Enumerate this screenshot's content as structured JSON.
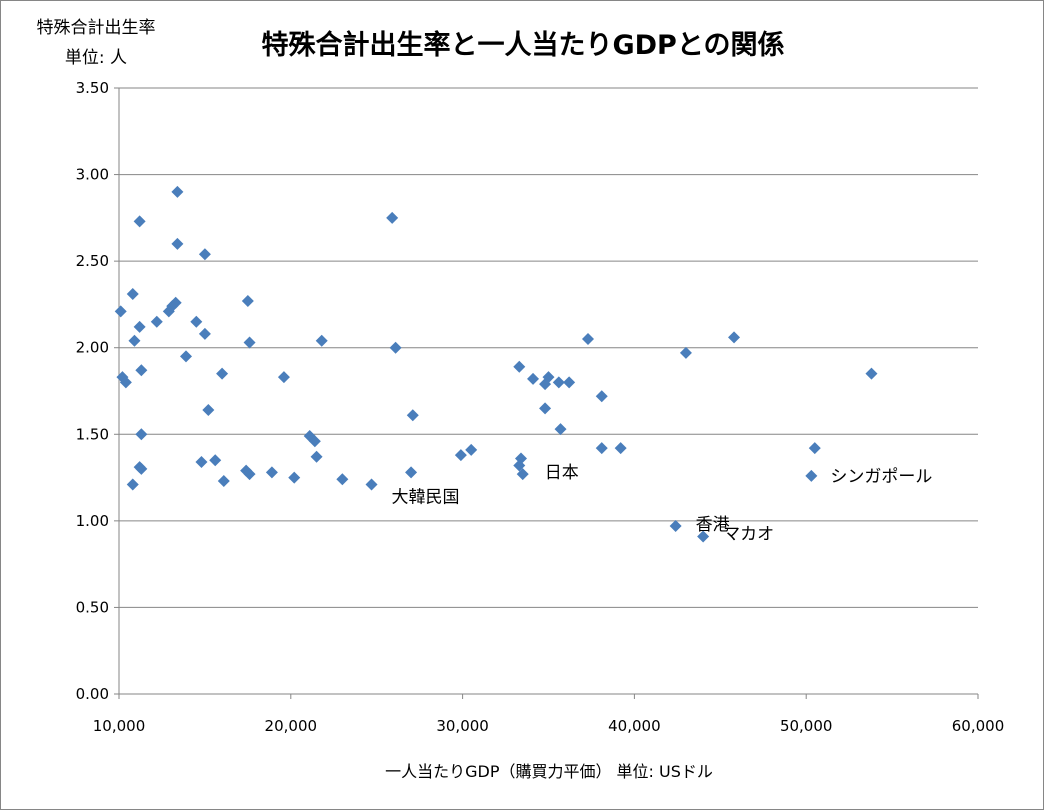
{
  "chart_data": {
    "type": "scatter",
    "title": "特殊合計出生率と一人当たりGDPとの関係",
    "ylabel": [
      "特殊合計出生率",
      "単位: 人"
    ],
    "xlabel": "一人当たりGDP（購買力平価） 単位: USドル",
    "xlim": [
      10000,
      60000
    ],
    "ylim": [
      0,
      3.5
    ],
    "x_ticks": [
      "10,000",
      "20,000",
      "30,000",
      "40,000",
      "50,000",
      "60,000"
    ],
    "y_ticks": [
      "0.00",
      "0.50",
      "1.00",
      "1.50",
      "2.00",
      "2.50",
      "3.00",
      "3.50"
    ],
    "grid": "horizontal",
    "marker_color": "#4a7ebb",
    "points": [
      [
        13400,
        2.9
      ],
      [
        11200,
        2.73
      ],
      [
        25900,
        2.75
      ],
      [
        13400,
        2.6
      ],
      [
        15000,
        2.54
      ],
      [
        10800,
        2.31
      ],
      [
        13300,
        2.26
      ],
      [
        17500,
        2.27
      ],
      [
        10100,
        2.21
      ],
      [
        12900,
        2.21
      ],
      [
        13100,
        2.24
      ],
      [
        12200,
        2.15
      ],
      [
        14500,
        2.15
      ],
      [
        11200,
        2.12
      ],
      [
        15000,
        2.08
      ],
      [
        10900,
        2.04
      ],
      [
        17600,
        2.03
      ],
      [
        21800,
        2.04
      ],
      [
        37300,
        2.05
      ],
      [
        45800,
        2.06
      ],
      [
        26100,
        2.0
      ],
      [
        43000,
        1.97
      ],
      [
        13900,
        1.95
      ],
      [
        11300,
        1.87
      ],
      [
        16000,
        1.85
      ],
      [
        33300,
        1.89
      ],
      [
        53800,
        1.85
      ],
      [
        10200,
        1.83
      ],
      [
        19600,
        1.83
      ],
      [
        10400,
        1.8
      ],
      [
        34100,
        1.82
      ],
      [
        35000,
        1.83
      ],
      [
        34800,
        1.79
      ],
      [
        35600,
        1.8
      ],
      [
        36200,
        1.8
      ],
      [
        38100,
        1.72
      ],
      [
        15200,
        1.64
      ],
      [
        27100,
        1.61
      ],
      [
        34800,
        1.65
      ],
      [
        35700,
        1.53
      ],
      [
        11300,
        1.5
      ],
      [
        21100,
        1.49
      ],
      [
        21400,
        1.46
      ],
      [
        38100,
        1.42
      ],
      [
        39200,
        1.42
      ],
      [
        50500,
        1.42
      ],
      [
        29900,
        1.38
      ],
      [
        30500,
        1.41
      ],
      [
        21500,
        1.37
      ],
      [
        14800,
        1.34
      ],
      [
        15600,
        1.35
      ],
      [
        33400,
        1.36
      ],
      [
        33300,
        1.32
      ],
      [
        11200,
        1.31
      ],
      [
        11300,
        1.3
      ],
      [
        17400,
        1.29
      ],
      [
        17600,
        1.27
      ],
      [
        18900,
        1.28
      ],
      [
        20200,
        1.25
      ],
      [
        23000,
        1.24
      ],
      [
        27000,
        1.28
      ],
      [
        16100,
        1.23
      ],
      [
        10800,
        1.21
      ],
      [
        24700,
        1.21
      ],
      [
        33500,
        1.27
      ],
      [
        50300,
        1.26
      ],
      [
        42400,
        0.97
      ],
      [
        44000,
        0.91
      ]
    ],
    "annotations": [
      {
        "text": "大韓民国",
        "x": 24700,
        "y": 1.21
      },
      {
        "text": "日本",
        "x": 33500,
        "y": 1.27
      },
      {
        "text": "シンガポール",
        "x": 50300,
        "y": 1.26
      },
      {
        "text": "香港",
        "x": 42400,
        "y": 0.97
      },
      {
        "text": "マカオ",
        "x": 44000,
        "y": 0.91
      }
    ]
  }
}
